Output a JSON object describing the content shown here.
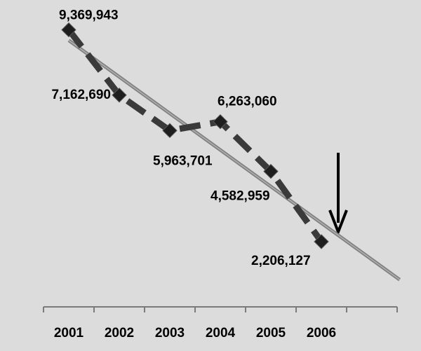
{
  "chart_data": {
    "type": "line",
    "categories": [
      "2001",
      "2002",
      "2003",
      "2004",
      "2005",
      "2006",
      null
    ],
    "values": [
      9369943,
      7162690,
      5963701,
      6263060,
      4582959,
      2206127,
      null
    ],
    "value_labels": [
      "9,369,943",
      "7,162,690",
      "5,963,701",
      "6,263,060",
      "4,582,959",
      "2,206,127",
      null
    ],
    "ylim": [
      0,
      10000000
    ],
    "color": "#3a3a3a",
    "marker_color": "#1e1e1e",
    "trendline": true,
    "trend_color": "#808080"
  }
}
